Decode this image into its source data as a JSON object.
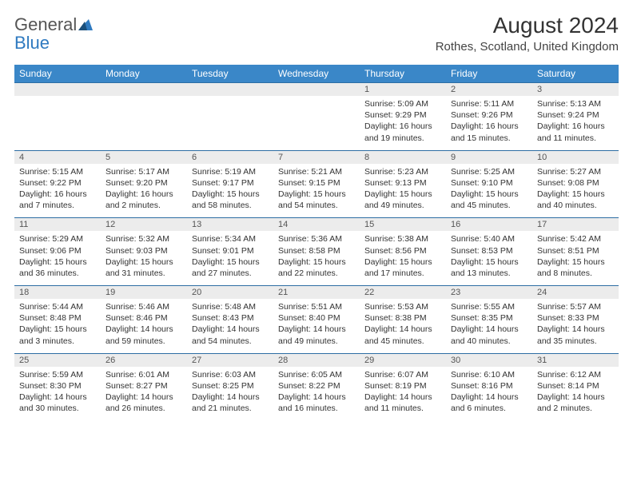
{
  "logo": {
    "word1": "General",
    "word2": "Blue"
  },
  "title": "August 2024",
  "location": "Rothes, Scotland, United Kingdom",
  "colors": {
    "header_bg": "#3a87c8",
    "header_text": "#ffffff",
    "row_divider": "#2d6da3",
    "daynum_bg": "#ececec",
    "text": "#333333",
    "logo_gray": "#555555",
    "logo_blue": "#2f7ac0"
  },
  "typography": {
    "title_fontsize": 28,
    "location_fontsize": 15,
    "dayheader_fontsize": 12,
    "cell_fontsize": 10.5,
    "logo_fontsize": 22
  },
  "day_headers": [
    "Sunday",
    "Monday",
    "Tuesday",
    "Wednesday",
    "Thursday",
    "Friday",
    "Saturday"
  ],
  "weeks": [
    [
      {
        "n": "",
        "sr": "",
        "ss": "",
        "dl": ""
      },
      {
        "n": "",
        "sr": "",
        "ss": "",
        "dl": ""
      },
      {
        "n": "",
        "sr": "",
        "ss": "",
        "dl": ""
      },
      {
        "n": "",
        "sr": "",
        "ss": "",
        "dl": ""
      },
      {
        "n": "1",
        "sr": "Sunrise: 5:09 AM",
        "ss": "Sunset: 9:29 PM",
        "dl": "Daylight: 16 hours and 19 minutes."
      },
      {
        "n": "2",
        "sr": "Sunrise: 5:11 AM",
        "ss": "Sunset: 9:26 PM",
        "dl": "Daylight: 16 hours and 15 minutes."
      },
      {
        "n": "3",
        "sr": "Sunrise: 5:13 AM",
        "ss": "Sunset: 9:24 PM",
        "dl": "Daylight: 16 hours and 11 minutes."
      }
    ],
    [
      {
        "n": "4",
        "sr": "Sunrise: 5:15 AM",
        "ss": "Sunset: 9:22 PM",
        "dl": "Daylight: 16 hours and 7 minutes."
      },
      {
        "n": "5",
        "sr": "Sunrise: 5:17 AM",
        "ss": "Sunset: 9:20 PM",
        "dl": "Daylight: 16 hours and 2 minutes."
      },
      {
        "n": "6",
        "sr": "Sunrise: 5:19 AM",
        "ss": "Sunset: 9:17 PM",
        "dl": "Daylight: 15 hours and 58 minutes."
      },
      {
        "n": "7",
        "sr": "Sunrise: 5:21 AM",
        "ss": "Sunset: 9:15 PM",
        "dl": "Daylight: 15 hours and 54 minutes."
      },
      {
        "n": "8",
        "sr": "Sunrise: 5:23 AM",
        "ss": "Sunset: 9:13 PM",
        "dl": "Daylight: 15 hours and 49 minutes."
      },
      {
        "n": "9",
        "sr": "Sunrise: 5:25 AM",
        "ss": "Sunset: 9:10 PM",
        "dl": "Daylight: 15 hours and 45 minutes."
      },
      {
        "n": "10",
        "sr": "Sunrise: 5:27 AM",
        "ss": "Sunset: 9:08 PM",
        "dl": "Daylight: 15 hours and 40 minutes."
      }
    ],
    [
      {
        "n": "11",
        "sr": "Sunrise: 5:29 AM",
        "ss": "Sunset: 9:06 PM",
        "dl": "Daylight: 15 hours and 36 minutes."
      },
      {
        "n": "12",
        "sr": "Sunrise: 5:32 AM",
        "ss": "Sunset: 9:03 PM",
        "dl": "Daylight: 15 hours and 31 minutes."
      },
      {
        "n": "13",
        "sr": "Sunrise: 5:34 AM",
        "ss": "Sunset: 9:01 PM",
        "dl": "Daylight: 15 hours and 27 minutes."
      },
      {
        "n": "14",
        "sr": "Sunrise: 5:36 AM",
        "ss": "Sunset: 8:58 PM",
        "dl": "Daylight: 15 hours and 22 minutes."
      },
      {
        "n": "15",
        "sr": "Sunrise: 5:38 AM",
        "ss": "Sunset: 8:56 PM",
        "dl": "Daylight: 15 hours and 17 minutes."
      },
      {
        "n": "16",
        "sr": "Sunrise: 5:40 AM",
        "ss": "Sunset: 8:53 PM",
        "dl": "Daylight: 15 hours and 13 minutes."
      },
      {
        "n": "17",
        "sr": "Sunrise: 5:42 AM",
        "ss": "Sunset: 8:51 PM",
        "dl": "Daylight: 15 hours and 8 minutes."
      }
    ],
    [
      {
        "n": "18",
        "sr": "Sunrise: 5:44 AM",
        "ss": "Sunset: 8:48 PM",
        "dl": "Daylight: 15 hours and 3 minutes."
      },
      {
        "n": "19",
        "sr": "Sunrise: 5:46 AM",
        "ss": "Sunset: 8:46 PM",
        "dl": "Daylight: 14 hours and 59 minutes."
      },
      {
        "n": "20",
        "sr": "Sunrise: 5:48 AM",
        "ss": "Sunset: 8:43 PM",
        "dl": "Daylight: 14 hours and 54 minutes."
      },
      {
        "n": "21",
        "sr": "Sunrise: 5:51 AM",
        "ss": "Sunset: 8:40 PM",
        "dl": "Daylight: 14 hours and 49 minutes."
      },
      {
        "n": "22",
        "sr": "Sunrise: 5:53 AM",
        "ss": "Sunset: 8:38 PM",
        "dl": "Daylight: 14 hours and 45 minutes."
      },
      {
        "n": "23",
        "sr": "Sunrise: 5:55 AM",
        "ss": "Sunset: 8:35 PM",
        "dl": "Daylight: 14 hours and 40 minutes."
      },
      {
        "n": "24",
        "sr": "Sunrise: 5:57 AM",
        "ss": "Sunset: 8:33 PM",
        "dl": "Daylight: 14 hours and 35 minutes."
      }
    ],
    [
      {
        "n": "25",
        "sr": "Sunrise: 5:59 AM",
        "ss": "Sunset: 8:30 PM",
        "dl": "Daylight: 14 hours and 30 minutes."
      },
      {
        "n": "26",
        "sr": "Sunrise: 6:01 AM",
        "ss": "Sunset: 8:27 PM",
        "dl": "Daylight: 14 hours and 26 minutes."
      },
      {
        "n": "27",
        "sr": "Sunrise: 6:03 AM",
        "ss": "Sunset: 8:25 PM",
        "dl": "Daylight: 14 hours and 21 minutes."
      },
      {
        "n": "28",
        "sr": "Sunrise: 6:05 AM",
        "ss": "Sunset: 8:22 PM",
        "dl": "Daylight: 14 hours and 16 minutes."
      },
      {
        "n": "29",
        "sr": "Sunrise: 6:07 AM",
        "ss": "Sunset: 8:19 PM",
        "dl": "Daylight: 14 hours and 11 minutes."
      },
      {
        "n": "30",
        "sr": "Sunrise: 6:10 AM",
        "ss": "Sunset: 8:16 PM",
        "dl": "Daylight: 14 hours and 6 minutes."
      },
      {
        "n": "31",
        "sr": "Sunrise: 6:12 AM",
        "ss": "Sunset: 8:14 PM",
        "dl": "Daylight: 14 hours and 2 minutes."
      }
    ]
  ]
}
